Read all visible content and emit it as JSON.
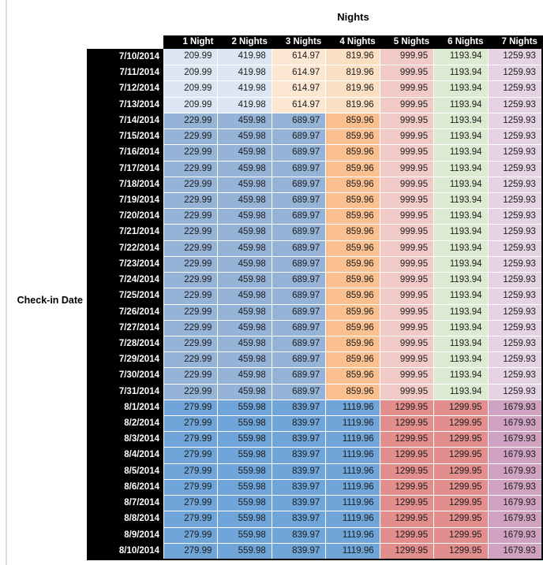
{
  "chart_data": {
    "type": "table",
    "title": "Nights",
    "row_axis_label": "Check-in Date",
    "columns": [
      "1 Night",
      "2 Nights",
      "3 Nights",
      "4 Nights",
      "5 Nights",
      "6 Nights",
      "7 Nights"
    ],
    "row_groups": [
      {
        "dates": [
          "7/10/2014",
          "7/11/2014",
          "7/12/2014",
          "7/13/2014"
        ],
        "nightly_values": [
          209.99,
          419.98,
          614.97,
          819.96,
          999.95,
          1193.94,
          1259.93
        ]
      },
      {
        "dates": [
          "7/14/2014",
          "7/15/2014",
          "7/16/2014",
          "7/17/2014",
          "7/18/2014",
          "7/19/2014",
          "7/20/2014",
          "7/21/2014",
          "7/22/2014",
          "7/23/2014",
          "7/24/2014",
          "7/25/2014",
          "7/26/2014",
          "7/27/2014",
          "7/28/2014",
          "7/29/2014",
          "7/30/2014",
          "7/31/2014"
        ],
        "nightly_values": [
          229.99,
          459.98,
          689.97,
          859.96,
          999.95,
          1193.94,
          1259.93
        ]
      },
      {
        "dates": [
          "8/1/2014",
          "8/2/2014",
          "8/3/2014",
          "8/4/2014",
          "8/5/2014",
          "8/6/2014",
          "8/7/2014",
          "8/8/2014",
          "8/9/2014",
          "8/10/2014"
        ],
        "nightly_values": [
          279.99,
          559.98,
          839.97,
          1119.96,
          1299.95,
          1299.95,
          1679.93
        ]
      }
    ]
  },
  "styles": {
    "header_bg": "#000000",
    "header_text": "#ffffff",
    "left_rule": "#d9d9d9",
    "cell_text": "#1c1c1c",
    "palette": {
      "light_blue": "#dce6f2",
      "light_tan": "#fbe7d2",
      "light_peach": "#fadfc2",
      "medium_blue": "#95b3d7",
      "orange": "#fac08f",
      "light_pink": "#f1cac8",
      "light_green": "#dcead2",
      "light_violet": "#e5d3e3",
      "dark_blue": "#6fa5d8",
      "salmon": "#e18e8c",
      "mauve": "#d0a2c2"
    },
    "group_cell_colors": [
      [
        "light_blue",
        "light_blue",
        "light_tan",
        "light_peach",
        "light_pink",
        "light_green",
        "light_violet"
      ],
      [
        "medium_blue",
        "medium_blue",
        "medium_blue",
        "orange",
        "light_pink",
        "light_green",
        "light_violet"
      ],
      [
        "dark_blue",
        "dark_blue",
        "dark_blue",
        "dark_blue",
        "salmon",
        "salmon",
        "mauve"
      ]
    ]
  }
}
